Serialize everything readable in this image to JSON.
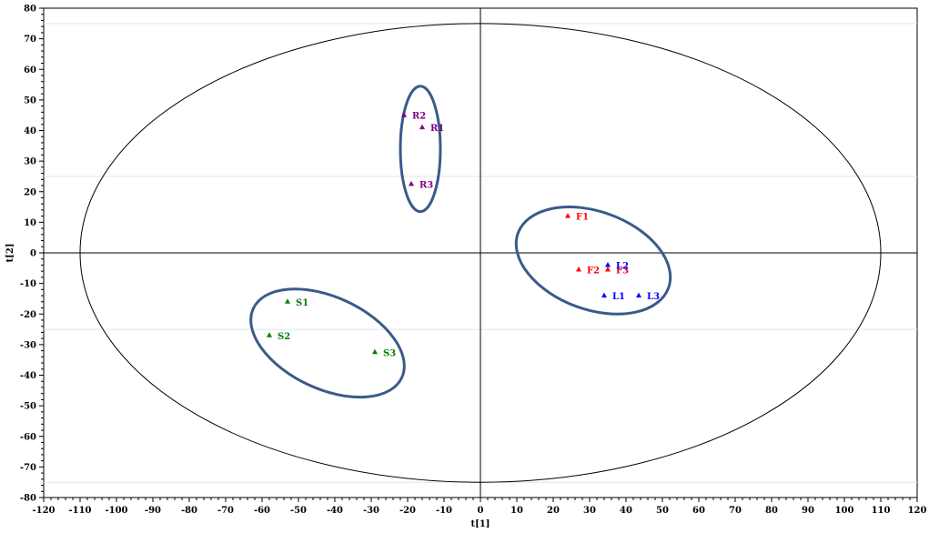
{
  "chart_data": {
    "type": "scatter",
    "title": "",
    "xlabel": "t[1]",
    "ylabel": "t[2]",
    "xlim": [
      -120,
      120
    ],
    "ylim": [
      -80,
      80
    ],
    "xticks": [
      -120,
      -110,
      -100,
      -90,
      -80,
      -70,
      -60,
      -50,
      -40,
      -30,
      -20,
      -10,
      0,
      10,
      20,
      30,
      40,
      50,
      60,
      70,
      80,
      90,
      100,
      110,
      120
    ],
    "yticks": [
      80,
      70,
      60,
      50,
      40,
      30,
      20,
      10,
      0,
      -10,
      -20,
      -30,
      -40,
      -50,
      -60,
      -70,
      -80
    ],
    "gridlines_y": [
      75,
      25,
      -25,
      -75
    ],
    "grid": false,
    "points": [
      {
        "label": "R2",
        "x": -21,
        "y": 45,
        "color": "#800080"
      },
      {
        "label": "R1",
        "x": -16,
        "y": 41,
        "color": "#800080"
      },
      {
        "label": "R3",
        "x": -19,
        "y": 22.5,
        "color": "#800080"
      },
      {
        "label": "F1",
        "x": 24,
        "y": 12,
        "color": "#ff0000"
      },
      {
        "label": "F2",
        "x": 27,
        "y": -5.5,
        "color": "#ff0000"
      },
      {
        "label": "F3",
        "x": 35,
        "y": -5.5,
        "color": "#ff0000"
      },
      {
        "label": "L2",
        "x": 35,
        "y": -4,
        "color": "#0000ff"
      },
      {
        "label": "L1",
        "x": 34,
        "y": -14,
        "color": "#0000ff"
      },
      {
        "label": "L3",
        "x": 43.5,
        "y": -14,
        "color": "#0000ff"
      },
      {
        "label": "S1",
        "x": -53,
        "y": -16,
        "color": "#008000"
      },
      {
        "label": "S2",
        "x": -58,
        "y": -27,
        "color": "#008000"
      },
      {
        "label": "S3",
        "x": -29,
        "y": -32.5,
        "color": "#008000"
      }
    ],
    "confidence_ellipse": {
      "cx": 0,
      "cy": 0,
      "rx": 110,
      "ry": 75,
      "color": "#000000"
    },
    "group_ellipses": [
      {
        "group": "R",
        "cx": -16.5,
        "cy": 34,
        "rx": 5.5,
        "ry": 20.5,
        "angle": 0,
        "color": "#3a5a8a"
      },
      {
        "group": "F/L",
        "cx": 31,
        "cy": -2.5,
        "rx": 22,
        "ry": 16,
        "angle": 20,
        "color": "#3a5a8a"
      },
      {
        "group": "S",
        "cx": -42,
        "cy": -29.5,
        "rx": 22.5,
        "ry": 15,
        "angle": 25,
        "color": "#3a5a8a"
      }
    ]
  }
}
